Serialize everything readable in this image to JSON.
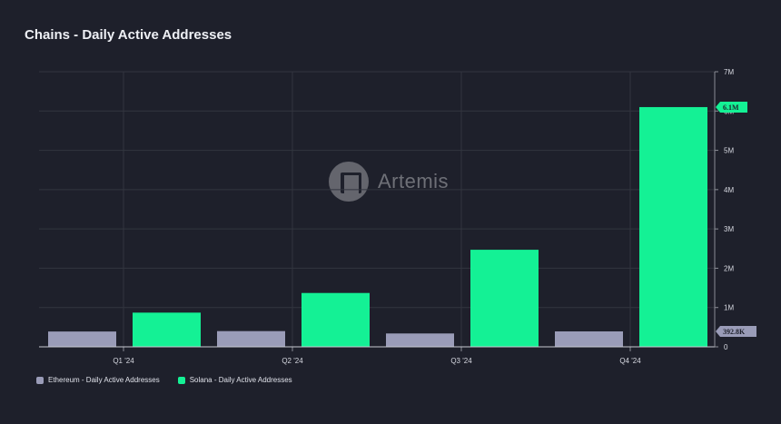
{
  "title": "Chains - Daily Active Addresses",
  "watermark": "Artemis",
  "chart_data": {
    "type": "bar",
    "categories": [
      "Q1 '24",
      "Q2 '24",
      "Q3 '24",
      "Q4 '24"
    ],
    "series": [
      {
        "name": "Ethereum - Daily Active Addresses",
        "color": "#9a9cb8",
        "values": [
          390000,
          400000,
          340000,
          392800
        ]
      },
      {
        "name": "Solana - Daily Active Addresses",
        "color": "#14f195",
        "values": [
          870000,
          1370000,
          2470000,
          6100000
        ]
      }
    ],
    "ylim": [
      0,
      7000000
    ],
    "yticks": [
      "0",
      "1M",
      "2M",
      "3M",
      "4M",
      "5M",
      "6M",
      "7M"
    ],
    "last_value_labels": [
      {
        "series": 1,
        "text": "6.1M"
      },
      {
        "series": 0,
        "text": "392.8K"
      }
    ],
    "grid": true,
    "legend_position": "bottom-left"
  }
}
